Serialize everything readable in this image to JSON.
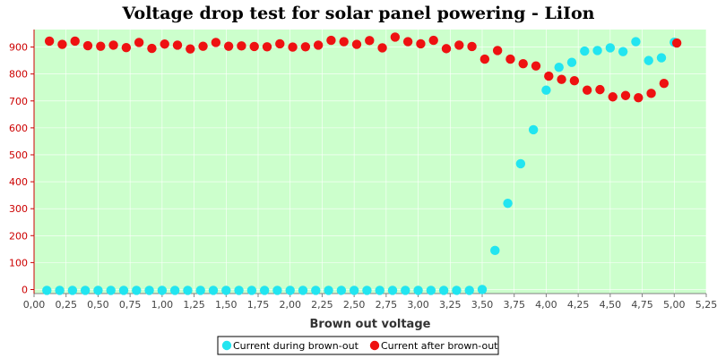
{
  "chart_data": {
    "type": "scatter",
    "title": "Voltage drop test for solar panel powering -  LiIon",
    "xlabel": "Brown out voltage",
    "ylabel": "",
    "xlim": [
      0,
      5.25
    ],
    "ylim": [
      -15,
      965
    ],
    "x_ticks": [
      0,
      0.25,
      0.5,
      0.75,
      1,
      1.25,
      1.5,
      1.75,
      2,
      2.25,
      2.5,
      2.75,
      3,
      3.25,
      3.5,
      3.75,
      4,
      4.25,
      4.5,
      4.75,
      5,
      5.25
    ],
    "x_tick_labels": [
      "0,00",
      "0,25",
      "0,50",
      "0,75",
      "1,00",
      "1,25",
      "1,50",
      "1,75",
      "2,00",
      "2,25",
      "2,50",
      "2,75",
      "3,00",
      "3,25",
      "3,50",
      "3,75",
      "4,00",
      "4,25",
      "4,50",
      "4,75",
      "5,00",
      "5,25"
    ],
    "y_ticks": [
      0,
      100,
      200,
      300,
      400,
      500,
      600,
      700,
      800,
      900
    ],
    "y_tick_labels": [
      "0",
      "100",
      "200",
      "300",
      "400",
      "500",
      "600",
      "700",
      "800",
      "900"
    ],
    "grid": true,
    "background_color": "#ccffcc",
    "legend_position": "bottom-center",
    "series": [
      {
        "name": "Current during brown-out",
        "color": "#22e5f0",
        "x": [
          0.1,
          0.2,
          0.3,
          0.4,
          0.5,
          0.6,
          0.7,
          0.8,
          0.9,
          1.0,
          1.1,
          1.2,
          1.3,
          1.4,
          1.5,
          1.6,
          1.7,
          1.8,
          1.9,
          2.0,
          2.1,
          2.2,
          2.3,
          2.4,
          2.5,
          2.6,
          2.7,
          2.8,
          2.9,
          3.0,
          3.1,
          3.2,
          3.3,
          3.4,
          3.5,
          3.6,
          3.7,
          3.8,
          3.9,
          4.0,
          4.1,
          4.2,
          4.3,
          4.4,
          4.5,
          4.6,
          4.7,
          4.8,
          4.9,
          5.0
        ],
        "y": [
          -3,
          -3,
          -3,
          -3,
          -3,
          -3,
          -3,
          -3,
          -3,
          -3,
          -3,
          -3,
          -3,
          -3,
          -3,
          -3,
          -3,
          -3,
          -3,
          -3,
          -3,
          -3,
          -3,
          -3,
          -3,
          -3,
          -3,
          -3,
          -3,
          -3,
          -3,
          -3,
          -3,
          -3,
          0,
          145,
          320,
          467,
          593,
          740,
          825,
          843,
          885,
          887,
          897,
          883,
          920,
          850,
          860,
          918
        ]
      },
      {
        "name": "Current after brown-out",
        "color": "#ee1111",
        "x": [
          0.12,
          0.22,
          0.32,
          0.42,
          0.52,
          0.62,
          0.72,
          0.82,
          0.92,
          1.02,
          1.12,
          1.22,
          1.32,
          1.42,
          1.52,
          1.62,
          1.72,
          1.82,
          1.92,
          2.02,
          2.12,
          2.22,
          2.32,
          2.42,
          2.52,
          2.62,
          2.72,
          2.82,
          2.92,
          3.02,
          3.12,
          3.22,
          3.32,
          3.42,
          3.52,
          3.62,
          3.72,
          3.82,
          3.92,
          4.02,
          4.12,
          4.22,
          4.32,
          4.42,
          4.52,
          4.62,
          4.72,
          4.82,
          4.92,
          5.02
        ],
        "y": [
          922,
          910,
          922,
          905,
          903,
          907,
          898,
          917,
          895,
          911,
          907,
          893,
          903,
          917,
          903,
          904,
          902,
          901,
          912,
          900,
          901,
          907,
          925,
          920,
          910,
          924,
          897,
          937,
          920,
          912,
          925,
          894,
          907,
          902,
          855,
          887,
          855,
          838,
          830,
          792,
          780,
          775,
          740,
          742,
          715,
          720,
          712,
          728,
          765,
          915
        ]
      }
    ]
  }
}
